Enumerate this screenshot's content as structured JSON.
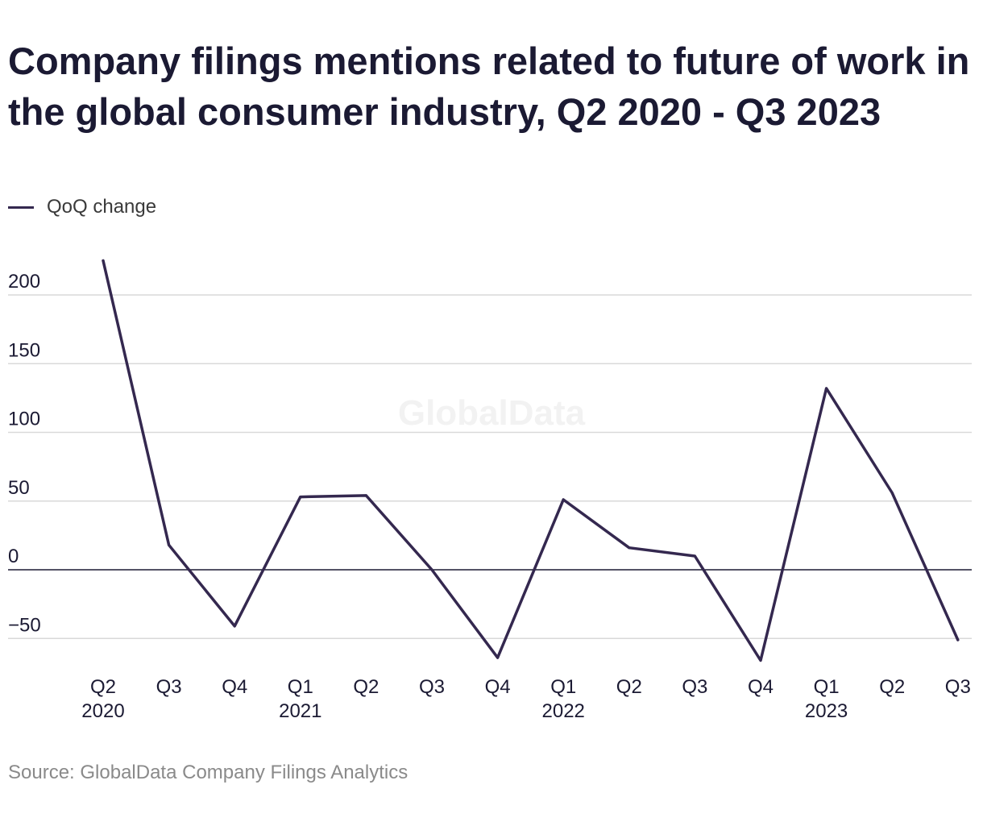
{
  "title": "Company filings mentions related to future of work in the global consumer industry, Q2 2020 - Q3 2023",
  "legend": {
    "label": "QoQ change"
  },
  "source": "Source: GlobalData Company Filings Analytics",
  "watermark": "GlobalData",
  "colors": {
    "line": "#34284f",
    "grid": "#d9d9d9",
    "zero_line": "#1b1a33",
    "text": "#1b1a33",
    "watermark": "#f2f2f2"
  },
  "chart_data": {
    "type": "line",
    "categories": [
      "Q2",
      "Q3",
      "Q4",
      "Q1",
      "Q2",
      "Q3",
      "Q4",
      "Q1",
      "Q2",
      "Q3",
      "Q4",
      "Q1",
      "Q2",
      "Q3"
    ],
    "year_labels": [
      "2020",
      "",
      "",
      "2021",
      "",
      "",
      "",
      "2022",
      "",
      "",
      "",
      "2023",
      "",
      ""
    ],
    "series": [
      {
        "name": "QoQ change",
        "values": [
          225,
          18,
          -41,
          53,
          54,
          0,
          -64,
          51,
          16,
          10,
          -66,
          132,
          56,
          -51
        ]
      }
    ],
    "y_ticks": [
      200,
      150,
      100,
      50,
      0,
      -50
    ],
    "y_tick_labels": [
      "200",
      "150",
      "100",
      "50",
      "0",
      "−50"
    ],
    "ylim": [
      -70,
      235
    ],
    "grid": true,
    "legend_position": "top-left"
  }
}
